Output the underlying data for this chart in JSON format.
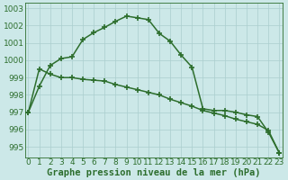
{
  "title": "Graphe pression niveau de la mer (hPa)",
  "background_color": "#cce8e8",
  "grid_color": "#aacece",
  "line_color": "#2d6e2d",
  "xlim": [
    -0.3,
    23.3
  ],
  "ylim": [
    994.4,
    1003.3
  ],
  "yticks": [
    995,
    996,
    997,
    998,
    999,
    1000,
    1001,
    1002,
    1003
  ],
  "xticks": [
    0,
    1,
    2,
    3,
    4,
    5,
    6,
    7,
    8,
    9,
    10,
    11,
    12,
    13,
    14,
    15,
    16,
    17,
    18,
    19,
    20,
    21,
    22,
    23
  ],
  "series1": [
    997.0,
    998.5,
    999.7,
    1000.1,
    1000.2,
    1001.2,
    1001.6,
    1001.9,
    1002.25,
    1002.55,
    1002.45,
    1002.35,
    1001.55,
    1001.1,
    1000.3,
    999.6,
    997.2,
    997.1,
    997.1,
    997.0,
    996.85,
    996.75,
    995.85,
    994.65
  ],
  "series2": [
    997.0,
    999.5,
    999.2,
    999.0,
    999.0,
    998.9,
    998.85,
    998.8,
    998.6,
    998.45,
    998.3,
    998.15,
    998.0,
    997.75,
    997.55,
    997.35,
    997.1,
    996.95,
    996.8,
    996.6,
    996.45,
    996.3,
    995.95,
    994.65
  ],
  "marker": "+",
  "markersize": 4.5,
  "linewidth": 1.1,
  "xlabel_fontsize": 7.5,
  "tick_fontsize": 6.5,
  "text_color": "#2d6e2d"
}
